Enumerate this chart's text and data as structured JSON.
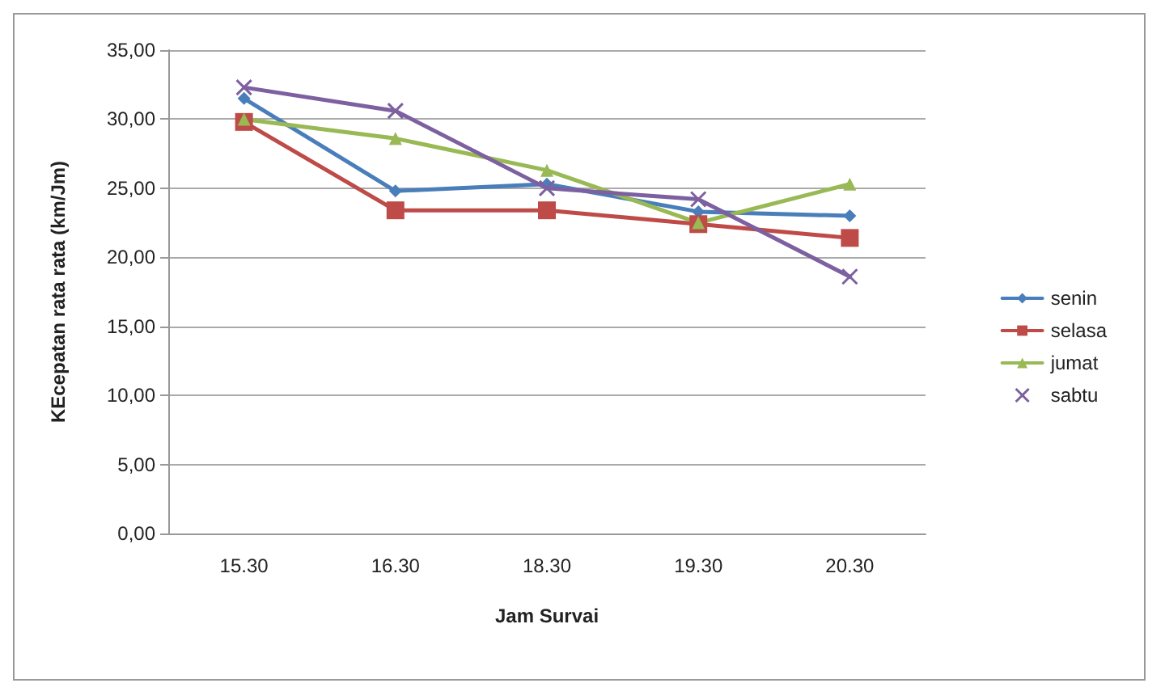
{
  "chart_data": {
    "type": "line",
    "xlabel": "Jam Survai",
    "ylabel": "KEcepatan rata rata (km/Jm)",
    "categories": [
      "15.30",
      "16.30",
      "18.30",
      "19.30",
      "20.30"
    ],
    "series": [
      {
        "name": "senin",
        "color": "#4a7ebb",
        "marker": "diamond",
        "values": [
          31.5,
          24.8,
          25.3,
          23.3,
          23.0
        ]
      },
      {
        "name": "selasa",
        "color": "#be4b48",
        "marker": "square",
        "values": [
          29.8,
          23.4,
          23.4,
          22.4,
          21.4
        ]
      },
      {
        "name": "jumat",
        "color": "#98b954",
        "marker": "triangle",
        "values": [
          30.0,
          28.6,
          26.3,
          22.5,
          25.3
        ]
      },
      {
        "name": "sabtu",
        "color": "#7d60a0",
        "marker": "cross",
        "values": [
          32.3,
          30.6,
          25.0,
          24.2,
          18.6
        ]
      }
    ],
    "ylim": [
      0,
      35
    ],
    "yticks": [
      {
        "value": 0,
        "label": "0,00"
      },
      {
        "value": 5,
        "label": "5,00"
      },
      {
        "value": 10,
        "label": "10,00"
      },
      {
        "value": 15,
        "label": "15,00"
      },
      {
        "value": 20,
        "label": "20,00"
      },
      {
        "value": 25,
        "label": "25,00"
      },
      {
        "value": 30,
        "label": "30,00"
      },
      {
        "value": 35,
        "label": "35,00"
      }
    ],
    "grid": "y",
    "legend": "right"
  }
}
